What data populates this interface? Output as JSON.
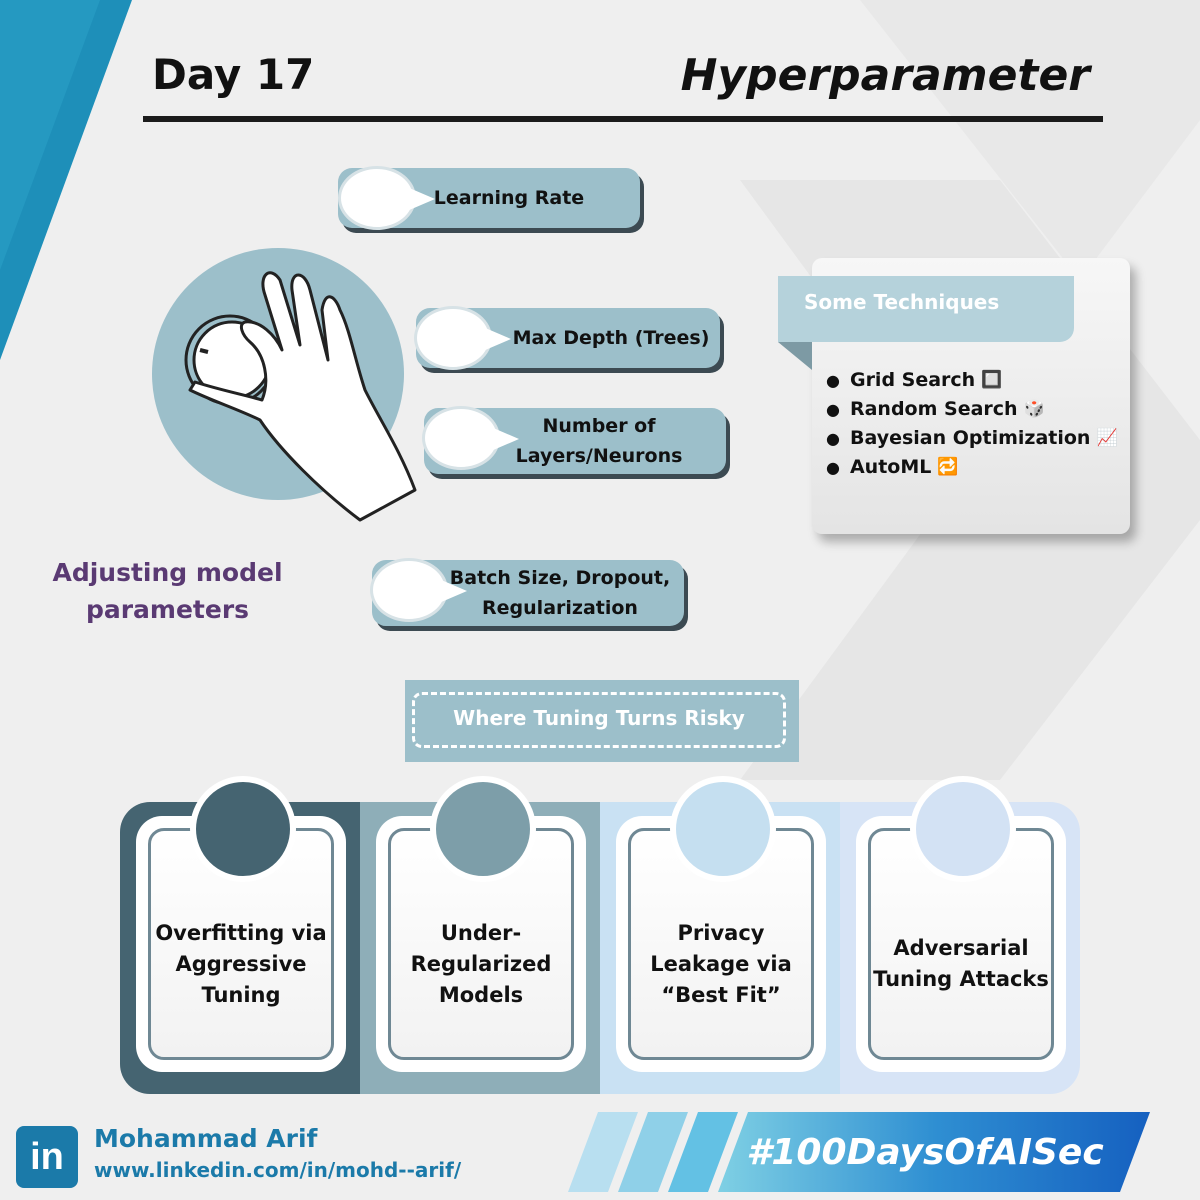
{
  "header": {
    "day": "Day 17",
    "topic": "Hyperparameter"
  },
  "illustration": {
    "caption": "Adjusting model parameters",
    "icon": "hand-turning-knob-icon"
  },
  "hyperparameters": [
    {
      "label": "Learning Rate"
    },
    {
      "label": "Max Depth (Trees)"
    },
    {
      "label": "Number of Layers/Neurons"
    },
    {
      "label": "Batch Size, Dropout, Regularization"
    }
  ],
  "techniques": {
    "title": "Some Techniques",
    "items": [
      {
        "label": "Grid Search",
        "emoji": "🔲"
      },
      {
        "label": "Random Search",
        "emoji": "🎲"
      },
      {
        "label": "Bayesian Optimization",
        "emoji": "📈"
      },
      {
        "label": "AutoML",
        "emoji": "🔁"
      }
    ]
  },
  "risks": {
    "title": "Where Tuning Turns Risky",
    "items": [
      {
        "label": "Overfitting via Aggressive Tuning",
        "color": "#456471"
      },
      {
        "label": "Under-Regularized Models",
        "color": "#7d9ea9"
      },
      {
        "label": "Privacy Leakage via “Best Fit”",
        "color": "#c5dff0"
      },
      {
        "label": "Adversarial Tuning Attacks",
        "color": "#d3e2f4"
      }
    ]
  },
  "footer": {
    "logo": "in",
    "name": "Mohammad Arif",
    "url": "www.linkedin.com/in/mohd--arif/",
    "hashtag": "#100DaysOfAISec"
  },
  "colors": {
    "accent": "#9cbfca",
    "brand_blue": "#1b7aa9",
    "caption_purple": "#5a3a73"
  }
}
